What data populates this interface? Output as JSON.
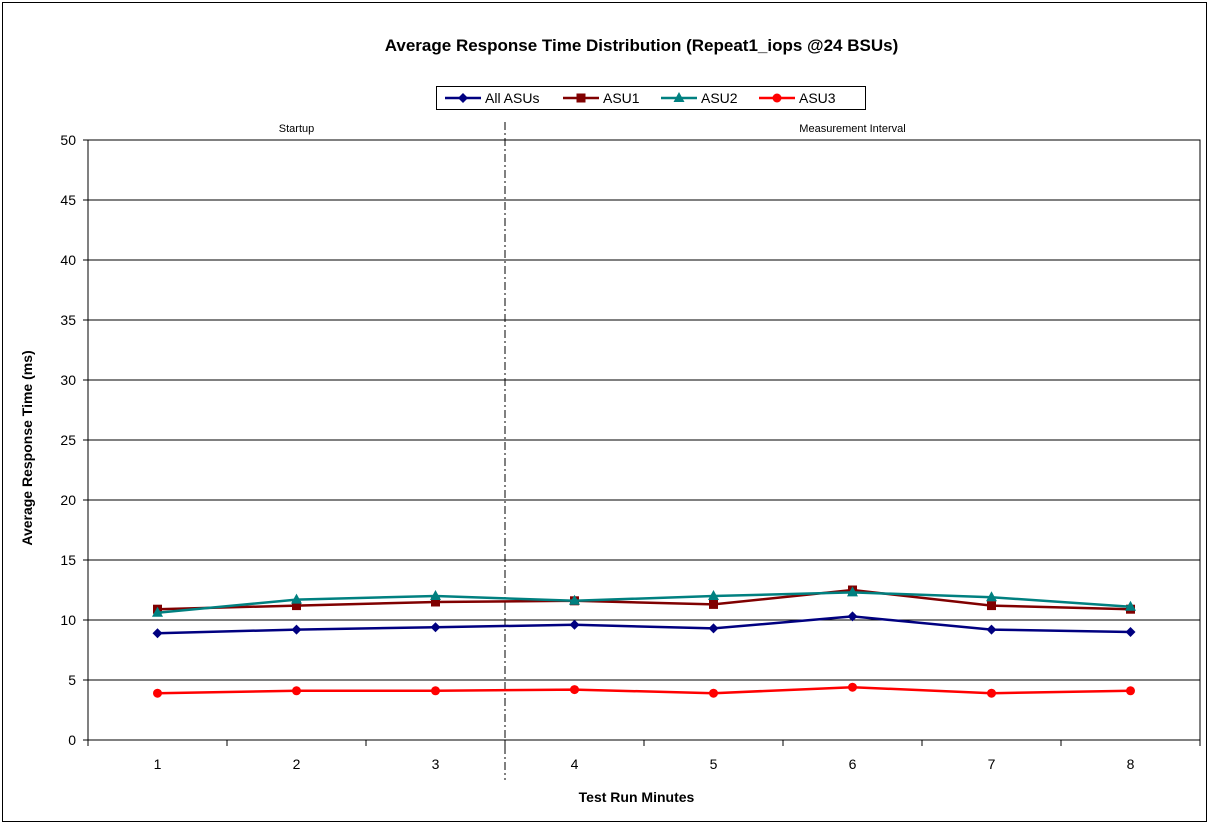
{
  "chart_data": {
    "type": "line",
    "title": "Average Response Time Distribution (Repeat1_iops @24 BSUs)",
    "xlabel": "Test Run Minutes",
    "ylabel": "Average Response Time (ms)",
    "categories": [
      "1",
      "2",
      "3",
      "4",
      "5",
      "6",
      "7",
      "8"
    ],
    "ylim": [
      0,
      50
    ],
    "yticks": [
      "0",
      "5",
      "10",
      "15",
      "20",
      "25",
      "30",
      "35",
      "40",
      "45",
      "50"
    ],
    "grid": "horizontal",
    "legend_placement": "top-center",
    "regions": [
      {
        "label": "Startup"
      },
      {
        "label": "Measurement Interval"
      }
    ],
    "series": [
      {
        "name": "All ASUs",
        "color": "#000080",
        "marker": "diamond",
        "values": [
          8.9,
          9.2,
          9.4,
          9.6,
          9.3,
          10.3,
          9.2,
          9.0
        ]
      },
      {
        "name": "ASU1",
        "color": "#800000",
        "marker": "square",
        "values": [
          10.9,
          11.2,
          11.5,
          11.6,
          11.3,
          12.5,
          11.2,
          10.9
        ]
      },
      {
        "name": "ASU2",
        "color": "#008080",
        "marker": "triangle",
        "values": [
          10.6,
          11.7,
          12.0,
          11.6,
          12.0,
          12.3,
          11.9,
          11.1
        ]
      },
      {
        "name": "ASU3",
        "color": "#ff0000",
        "marker": "circle",
        "values": [
          3.9,
          4.1,
          4.1,
          4.2,
          3.9,
          4.4,
          3.9,
          4.1
        ]
      }
    ]
  }
}
